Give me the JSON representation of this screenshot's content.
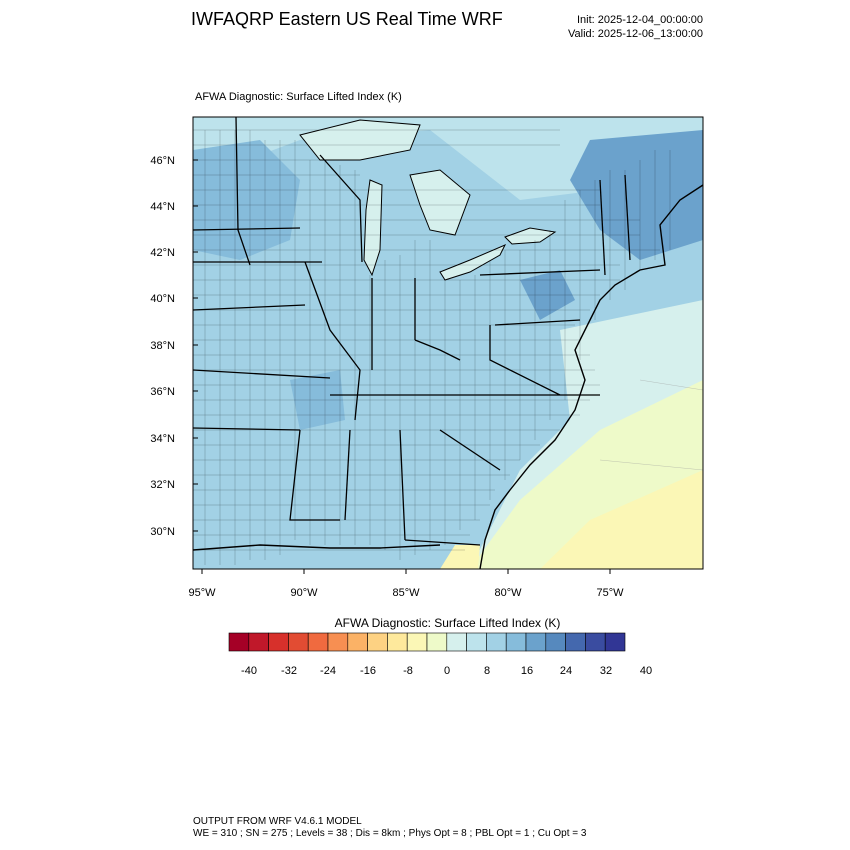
{
  "header": {
    "title": "IWFAQRP Eastern US Real Time WRF",
    "init": "Init: 2025-12-04_00:00:00",
    "valid": "Valid: 2025-12-06_13:00:00"
  },
  "map": {
    "subtitle": "AFWA Diagnostic: Surface Lifted Index   (K)",
    "lat_labels": [
      "46°N",
      "44°N",
      "42°N",
      "40°N",
      "38°N",
      "36°N",
      "34°N",
      "32°N",
      "30°N"
    ],
    "lon_labels": [
      "95°W",
      "90°W",
      "85°W",
      "80°W",
      "75°W"
    ]
  },
  "colorbar": {
    "title": "AFWA Diagnostic: Surface Lifted Index  (K)",
    "tick_labels": [
      "-40",
      "-32",
      "-24",
      "-16",
      "-8",
      "0",
      "8",
      "16",
      "24",
      "32",
      "40"
    ],
    "colors": [
      "#a50026",
      "#c0182a",
      "#d7302b",
      "#e24c33",
      "#f06a3f",
      "#f78f52",
      "#fbb266",
      "#fdd283",
      "#fee99c",
      "#fbf7b6",
      "#eefac9",
      "#d6f0ed",
      "#bde3ec",
      "#a2d1e5",
      "#86bcdb",
      "#6ba2cc",
      "#5689be",
      "#4468ae",
      "#3a4ca0",
      "#313695"
    ]
  },
  "footer": {
    "line1": "OUTPUT FROM WRF V4.6.1 MODEL",
    "line2": "WE = 310 ; SN = 275 ; Levels = 38 ; Dis = 8km ; Phys Opt = 8 ; PBL Opt = 1 ; Cu Opt = 3"
  }
}
